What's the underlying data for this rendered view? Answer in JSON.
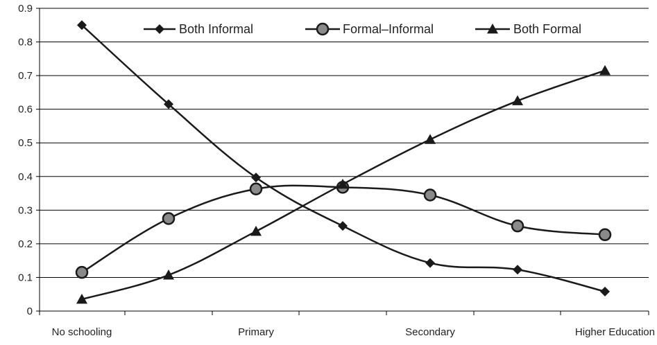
{
  "chart_data": {
    "type": "line",
    "title": "",
    "xlabel": "",
    "ylabel": "",
    "ylim": [
      0,
      0.9
    ],
    "yticks": [
      "0",
      "0.1",
      "0.2",
      "0.3",
      "0.4",
      "0.5",
      "0.6",
      "0.7",
      "0.8",
      "0.9"
    ],
    "x_tick_labels": [
      "No schooling",
      "Primary",
      "Secondary",
      "Higher Education"
    ],
    "x_points": 7,
    "grid": true,
    "legend_position": "top",
    "series": [
      {
        "name": "Both Informal",
        "marker": "diamond",
        "color": "#1a1a1a",
        "values": [
          0.85,
          0.615,
          0.397,
          0.253,
          0.143,
          0.123,
          0.058
        ]
      },
      {
        "name": "Formal–Informal",
        "marker": "circle",
        "color": "#1a1a1a",
        "values": [
          0.115,
          0.275,
          0.363,
          0.368,
          0.345,
          0.253,
          0.227
        ]
      },
      {
        "name": "Both Formal",
        "marker": "triangle",
        "color": "#1a1a1a",
        "values": [
          0.035,
          0.107,
          0.237,
          0.377,
          0.51,
          0.625,
          0.715
        ]
      }
    ]
  }
}
